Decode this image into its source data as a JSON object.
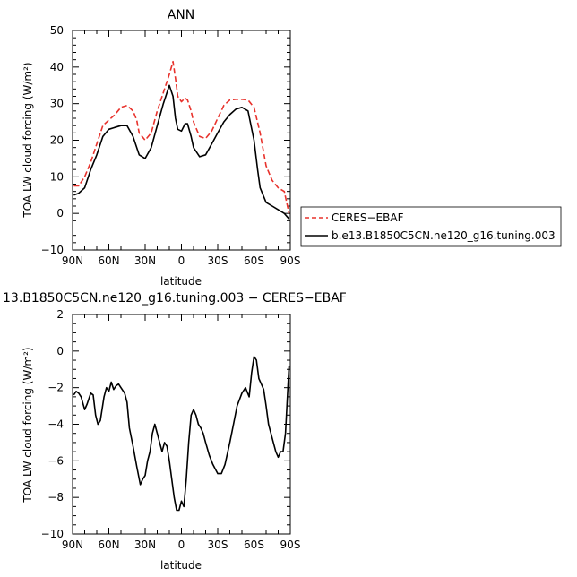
{
  "chart_data": [
    {
      "type": "line",
      "title": "ANN",
      "xlabel": "latitude",
      "ylabel": "TOA LW cloud forcing (W/m²)",
      "xlim": [
        90,
        -90
      ],
      "ylim": [
        -10,
        50
      ],
      "x_ticks": [
        "90N",
        "60N",
        "30N",
        "0",
        "30S",
        "60S",
        "90S"
      ],
      "y_ticks": [
        "50",
        "40",
        "30",
        "20",
        "10",
        "0",
        "−10"
      ],
      "legend_placement": "outside-right",
      "series": [
        {
          "name": "CERES−EBAF",
          "color": "#e8322c",
          "dash": "dashed",
          "x": [
            89,
            85,
            80,
            75,
            70,
            65,
            60,
            55,
            50,
            45,
            40,
            37,
            35,
            30,
            25,
            20,
            15,
            10,
            7,
            5,
            3,
            0,
            -3,
            -5,
            -8,
            -10,
            -15,
            -20,
            -25,
            -30,
            -35,
            -40,
            -45,
            -50,
            -55,
            -60,
            -65,
            -70,
            -75,
            -80,
            -85,
            -89
          ],
          "values": [
            7.5,
            7.5,
            10.0,
            14.0,
            19.0,
            24.0,
            25.5,
            27.0,
            29.0,
            29.5,
            28.0,
            25.5,
            22.0,
            20.0,
            22.0,
            28.0,
            33.0,
            38.0,
            41.5,
            37.0,
            32.0,
            30.5,
            31.5,
            31.0,
            28.0,
            25.0,
            21.0,
            20.5,
            22.5,
            26.0,
            29.5,
            31.0,
            31.2,
            31.2,
            31.0,
            29.0,
            22.0,
            13.0,
            9.0,
            7.0,
            6.0,
            0.0
          ]
        },
        {
          "name": "b.e13.B1850C5CN.ne120_g16.tuning.003",
          "color": "#000000",
          "dash": "solid",
          "x": [
            89,
            85,
            80,
            75,
            70,
            65,
            60,
            55,
            50,
            45,
            40,
            35,
            30,
            25,
            20,
            15,
            10,
            7,
            5,
            3,
            0,
            -3,
            -5,
            -8,
            -10,
            -15,
            -20,
            -25,
            -30,
            -35,
            -40,
            -45,
            -50,
            -55,
            -60,
            -63,
            -65,
            -70,
            -75,
            -80,
            -85,
            -89
          ],
          "values": [
            5.0,
            5.5,
            7.0,
            12.0,
            16.0,
            21.0,
            23.0,
            23.5,
            24.0,
            24.0,
            21.0,
            16.0,
            15.0,
            18.0,
            24.0,
            30.0,
            35.0,
            32.0,
            26.0,
            23.0,
            22.5,
            24.5,
            24.5,
            21.0,
            18.0,
            15.5,
            16.0,
            19.0,
            22.0,
            25.0,
            27.0,
            28.5,
            29.0,
            28.0,
            20.0,
            12.0,
            7.0,
            3.0,
            2.0,
            1.0,
            0.0,
            -1.5
          ]
        }
      ]
    },
    {
      "type": "line",
      "title": "13.B1850C5CN.ne120_g16.tuning.003 − CERES−EBAF",
      "xlabel": "latitude",
      "ylabel": "TOA LW cloud forcing (W/m²)",
      "xlim": [
        90,
        -90
      ],
      "ylim": [
        -10,
        2
      ],
      "x_ticks": [
        "90N",
        "60N",
        "30N",
        "0",
        "30S",
        "60S",
        "90S"
      ],
      "y_ticks": [
        "2",
        "0",
        "−2",
        "−4",
        "−6",
        "−8",
        "−10"
      ],
      "series": [
        {
          "color": "#000000",
          "dash": "solid",
          "x": [
            89,
            87,
            85,
            83,
            80,
            78,
            75,
            73,
            71,
            69,
            67,
            64,
            62,
            60,
            58,
            56,
            54,
            52,
            50,
            47,
            45,
            43,
            40,
            37,
            34,
            32,
            30,
            28,
            26,
            24,
            22,
            20,
            18,
            16,
            14,
            12,
            10,
            8,
            6,
            4,
            2,
            0,
            -2,
            -4,
            -6,
            -8,
            -10,
            -12,
            -14,
            -16,
            -18,
            -20,
            -23,
            -26,
            -30,
            -33,
            -36,
            -40,
            -43,
            -46,
            -50,
            -53,
            -56,
            -58,
            -60,
            -62,
            -64,
            -66,
            -68,
            -70,
            -72,
            -74,
            -76,
            -78,
            -80,
            -82,
            -84,
            -86,
            -88,
            -89
          ],
          "values": [
            -2.4,
            -2.2,
            -2.3,
            -2.5,
            -3.2,
            -2.9,
            -2.3,
            -2.4,
            -3.5,
            -4.0,
            -3.8,
            -2.5,
            -2.0,
            -2.2,
            -1.7,
            -2.1,
            -1.9,
            -1.8,
            -2.0,
            -2.3,
            -2.8,
            -4.2,
            -5.2,
            -6.3,
            -7.3,
            -7.0,
            -6.8,
            -6.0,
            -5.5,
            -4.5,
            -4.0,
            -4.5,
            -5.0,
            -5.5,
            -5.0,
            -5.2,
            -6.0,
            -7.0,
            -8.0,
            -8.7,
            -8.7,
            -8.2,
            -8.5,
            -7.0,
            -5.0,
            -3.5,
            -3.2,
            -3.5,
            -4.0,
            -4.2,
            -4.5,
            -5.0,
            -5.7,
            -6.2,
            -6.7,
            -6.7,
            -6.2,
            -5.0,
            -4.0,
            -3.0,
            -2.3,
            -2.0,
            -2.5,
            -1.2,
            -0.3,
            -0.5,
            -1.5,
            -1.8,
            -2.1,
            -3.0,
            -4.0,
            -4.5,
            -5.0,
            -5.5,
            -5.8,
            -5.5,
            -5.5,
            -4.5,
            -2.0,
            -0.8
          ]
        }
      ]
    }
  ]
}
